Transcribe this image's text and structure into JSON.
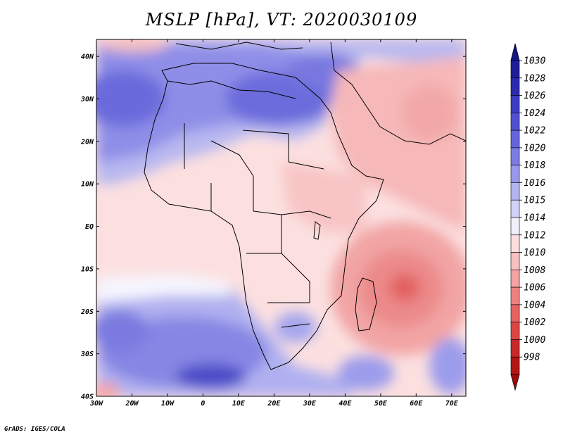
{
  "title": "MSLP [hPa], VT: 2020030109",
  "credit": "GrADS: IGES/COLA",
  "map": {
    "lat_labels": [
      "40N",
      "30N",
      "20N",
      "10N",
      "EQ",
      "10S",
      "20S",
      "30S",
      "40S"
    ],
    "lon_labels": [
      "30W",
      "20W",
      "10W",
      "0",
      "10E",
      "20E",
      "30E",
      "40E",
      "50E",
      "60E",
      "70E"
    ],
    "lat_range": [
      -40,
      44
    ],
    "lon_range": [
      -30,
      74
    ]
  },
  "colorbar": {
    "levels": [
      "1030",
      "1028",
      "1026",
      "1024",
      "1022",
      "1020",
      "1018",
      "1016",
      "1015",
      "1014",
      "1012",
      "1010",
      "1008",
      "1006",
      "1004",
      "1002",
      "1000",
      "998"
    ],
    "colors": [
      "#1e1e9a",
      "#2b2bb0",
      "#3c3cc4",
      "#5050d2",
      "#6464dc",
      "#7c7ce4",
      "#9898ec",
      "#b4b4f2",
      "#d2d2f8",
      "#f0f0fc",
      "#fcdede",
      "#f8c0c0",
      "#f4a2a2",
      "#ee8080",
      "#e86262",
      "#de4444",
      "#c82828",
      "#b41414"
    ],
    "top_arrow_color": "#14148c",
    "bottom_arrow_color": "#a00a0a"
  }
}
